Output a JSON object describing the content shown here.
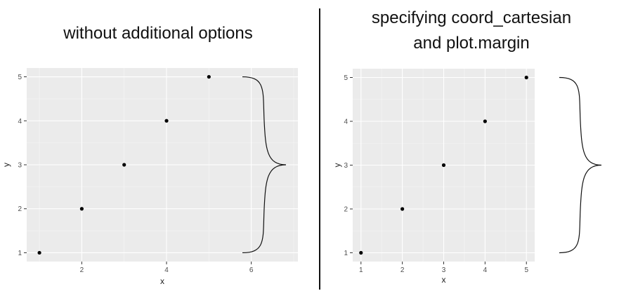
{
  "panels": {
    "left": {
      "title": "without additional options"
    },
    "right": {
      "title_line1": "specifying coord_cartesian",
      "title_line2": "and plot.margin"
    }
  },
  "chart_data": [
    {
      "type": "scatter",
      "title": "without additional options",
      "xlabel": "x",
      "ylabel": "y",
      "x": [
        1,
        2,
        3,
        4,
        5
      ],
      "y": [
        1,
        2,
        3,
        4,
        5
      ],
      "xticks": [
        2,
        4,
        6
      ],
      "yticks": [
        1,
        2,
        3,
        4,
        5
      ],
      "xlim": [
        0.7,
        7.1
      ],
      "ylim": [
        0.8,
        5.2
      ],
      "grid": true,
      "background": "#ebebeb",
      "point_color": "#000000",
      "annotation": "right curly brace spanning y = 1 to 5 (x ≈ 6 to 7)"
    },
    {
      "type": "scatter",
      "title": "specifying coord_cartesian and plot.margin",
      "xlabel": "x",
      "ylabel": "y",
      "x": [
        1,
        2,
        3,
        4,
        5
      ],
      "y": [
        1,
        2,
        3,
        4,
        5
      ],
      "xticks": [
        1,
        2,
        3,
        4,
        5
      ],
      "yticks": [
        1,
        2,
        3,
        4,
        5
      ],
      "xlim": [
        0.8,
        5.2
      ],
      "ylim": [
        0.8,
        5.2
      ],
      "grid": true,
      "background": "#ebebeb",
      "point_color": "#000000",
      "annotation": "right curly brace drawn in the plot margin spanning y = 1 to 5"
    }
  ]
}
